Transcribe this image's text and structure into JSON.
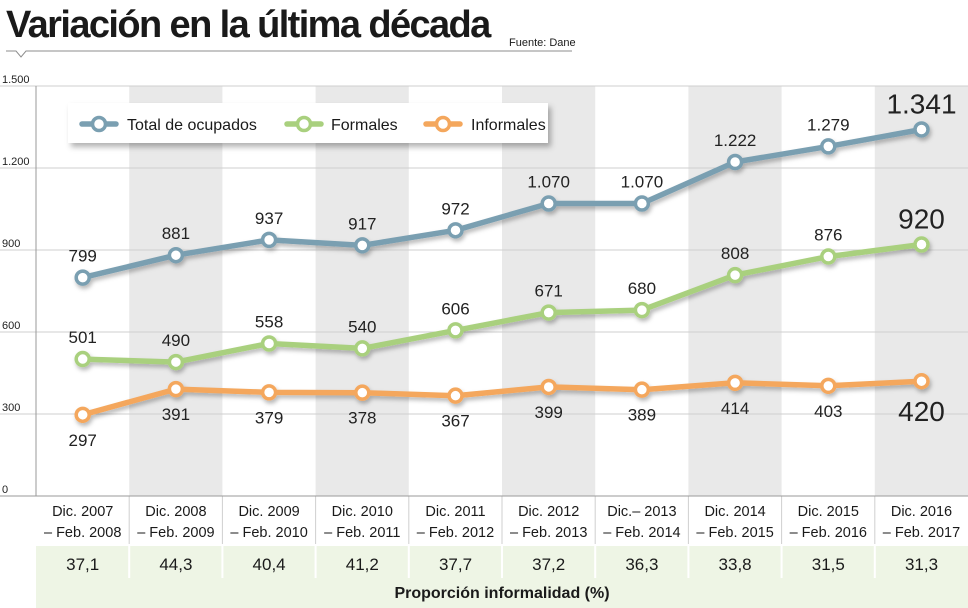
{
  "header": {
    "title": "Variación en la última década",
    "source": "Fuente: Dane"
  },
  "chart_data": {
    "type": "line",
    "title": "Variación en la última década",
    "categories": [
      [
        "Dic. 2007",
        "– Feb. 2008"
      ],
      [
        "Dic. 2008",
        "– Feb. 2009"
      ],
      [
        "Dic. 2009",
        "– Feb. 2010"
      ],
      [
        "Dic. 2010",
        "– Feb. 2011"
      ],
      [
        "Dic. 2011",
        "– Feb. 2012"
      ],
      [
        "Dic. 2012",
        "– Feb. 2013"
      ],
      [
        "Dic.– 2013",
        "– Feb. 2014"
      ],
      [
        "Dic. 2014",
        "– Feb. 2015"
      ],
      [
        "Dic. 2015",
        "– Feb. 2016"
      ],
      [
        "Dic. 2016",
        "– Feb. 2017"
      ]
    ],
    "series": [
      {
        "name": "Total de ocupados",
        "color": "#7a9fb1",
        "values": [
          799,
          881,
          937,
          917,
          972,
          1070,
          1070,
          1222,
          1279,
          1341
        ],
        "labels": [
          "799",
          "881",
          "937",
          "917",
          "972",
          "1.070",
          "1.070",
          "1.222",
          "1.279",
          "1.341"
        ],
        "label_position": "above"
      },
      {
        "name": "Formales",
        "color": "#a9d07e",
        "values": [
          501,
          490,
          558,
          540,
          606,
          671,
          680,
          808,
          876,
          920
        ],
        "labels": [
          "501",
          "490",
          "558",
          "540",
          "606",
          "671",
          "680",
          "808",
          "876",
          "920"
        ],
        "label_position": "above"
      },
      {
        "name": "Informales",
        "color": "#f4a75d",
        "values": [
          297,
          391,
          379,
          378,
          367,
          399,
          389,
          414,
          403,
          420
        ],
        "labels": [
          "297",
          "391",
          "379",
          "378",
          "367",
          "399",
          "389",
          "414",
          "403",
          "420"
        ],
        "label_position": "below"
      }
    ],
    "yticks": [
      0,
      300,
      600,
      900,
      1200,
      1500
    ],
    "ytick_labels": [
      "0",
      "300",
      "600",
      "900",
      "1.200",
      "1.500"
    ],
    "ylim": [
      0,
      1500
    ],
    "legend": "top-left",
    "proportion": {
      "values": [
        "37,1",
        "44,3",
        "40,4",
        "41,2",
        "37,7",
        "37,2",
        "36,3",
        "33,8",
        "31,5",
        "31,3"
      ],
      "label": "Proporción informalidad (%)"
    }
  }
}
